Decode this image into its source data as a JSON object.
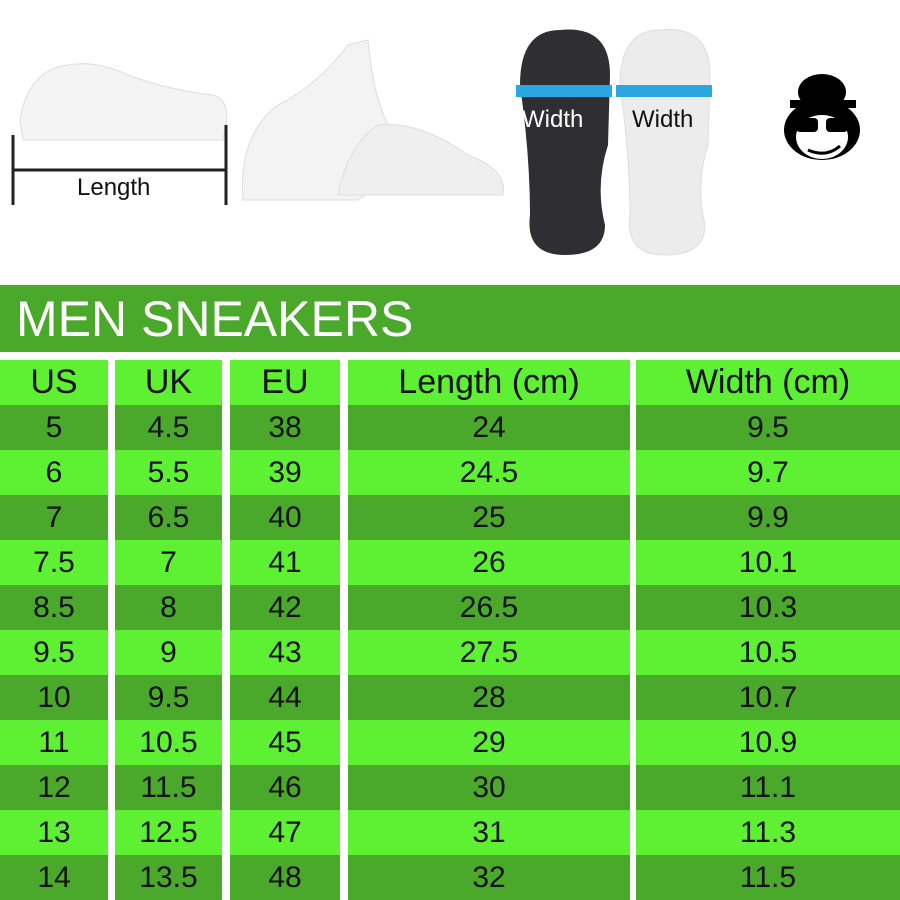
{
  "images": {
    "length_label": "Length",
    "width_label_left": "Width",
    "width_label_right": "Width",
    "logo": "monkey-with-bowler-hat-and-sunglasses"
  },
  "title": "MEN SNEAKERS",
  "colors": {
    "dark_row": "#4aa82b",
    "light_row": "#5ef033",
    "width_arrow": "#2aa7e0"
  },
  "table": {
    "headers": [
      "US",
      "UK",
      "EU",
      "Length (cm)",
      "Width (cm)"
    ],
    "rows": [
      [
        "5",
        "4.5",
        "38",
        "24",
        "9.5"
      ],
      [
        "6",
        "5.5",
        "39",
        "24.5",
        "9.7"
      ],
      [
        "7",
        "6.5",
        "40",
        "25",
        "9.9"
      ],
      [
        "7.5",
        "7",
        "41",
        "26",
        "10.1"
      ],
      [
        "8.5",
        "8",
        "42",
        "26.5",
        "10.3"
      ],
      [
        "9.5",
        "9",
        "43",
        "27.5",
        "10.5"
      ],
      [
        "10",
        "9.5",
        "44",
        "28",
        "10.7"
      ],
      [
        "11",
        "10.5",
        "45",
        "29",
        "10.9"
      ],
      [
        "12",
        "11.5",
        "46",
        "30",
        "11.1"
      ],
      [
        "13",
        "12.5",
        "47",
        "31",
        "11.3"
      ],
      [
        "14",
        "13.5",
        "48",
        "32",
        "11.5"
      ]
    ]
  }
}
